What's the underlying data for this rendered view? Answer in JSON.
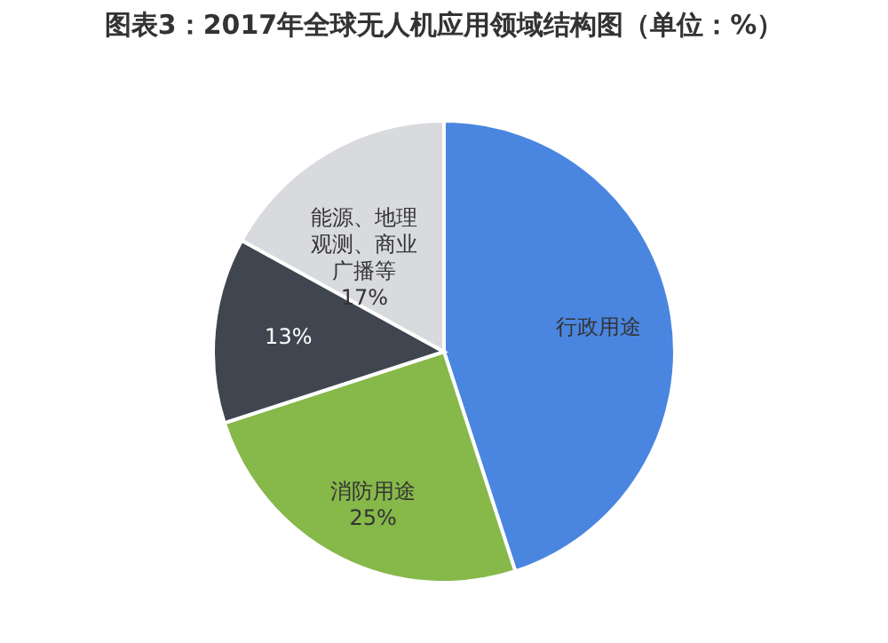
{
  "chart_data": {
    "type": "pie",
    "title": "图表3：2017年全球无人机应用领域结构图（单位：%）",
    "categories": [
      "行政用途",
      "消防用途",
      null,
      "能源、地理观测、商业广播等"
    ],
    "values": [
      45,
      25,
      13,
      17
    ],
    "colors": [
      "#4a86e0",
      "#86b84a",
      "#3f4650",
      "#d8dade"
    ],
    "value_labels": [
      null,
      "25%",
      "13%",
      "17%"
    ]
  }
}
